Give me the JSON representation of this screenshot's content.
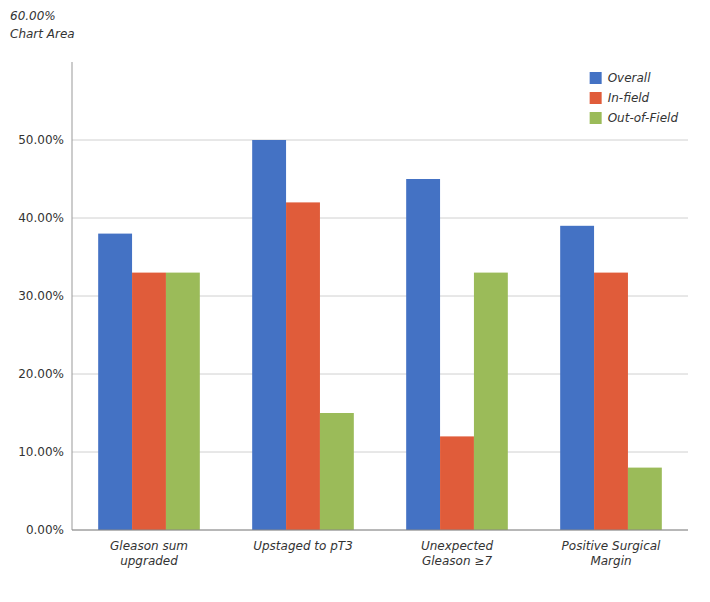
{
  "chart_data": {
    "type": "bar",
    "categories": [
      "Gleason sum\nupgraded",
      "Upstaged to pT3",
      "Unexpected\nGleason ≥7",
      "Positive Surgical\nMargin"
    ],
    "series": [
      {
        "name": "Overall",
        "color": "#4472C4",
        "values": [
          38.0,
          50.0,
          45.0,
          39.0
        ]
      },
      {
        "name": "In-field",
        "color": "#E05C3A",
        "values": [
          33.0,
          42.0,
          12.0,
          33.0
        ]
      },
      {
        "name": "Out-of-Field",
        "color": "#9BBB59",
        "values": [
          33.0,
          15.0,
          33.0,
          8.0
        ]
      }
    ],
    "ylim": [
      0,
      60
    ],
    "yticks": [
      {
        "value": 0,
        "label": "0.00%"
      },
      {
        "value": 10,
        "label": "10.00%"
      },
      {
        "value": 20,
        "label": "20.00%"
      },
      {
        "value": 30,
        "label": "30.00%"
      },
      {
        "value": 40,
        "label": "40.00%"
      },
      {
        "value": 50,
        "label": "50.00%"
      }
    ],
    "annotations": [
      "60.00%",
      "Chart Area"
    ],
    "grid": true,
    "legend": "upper right"
  }
}
